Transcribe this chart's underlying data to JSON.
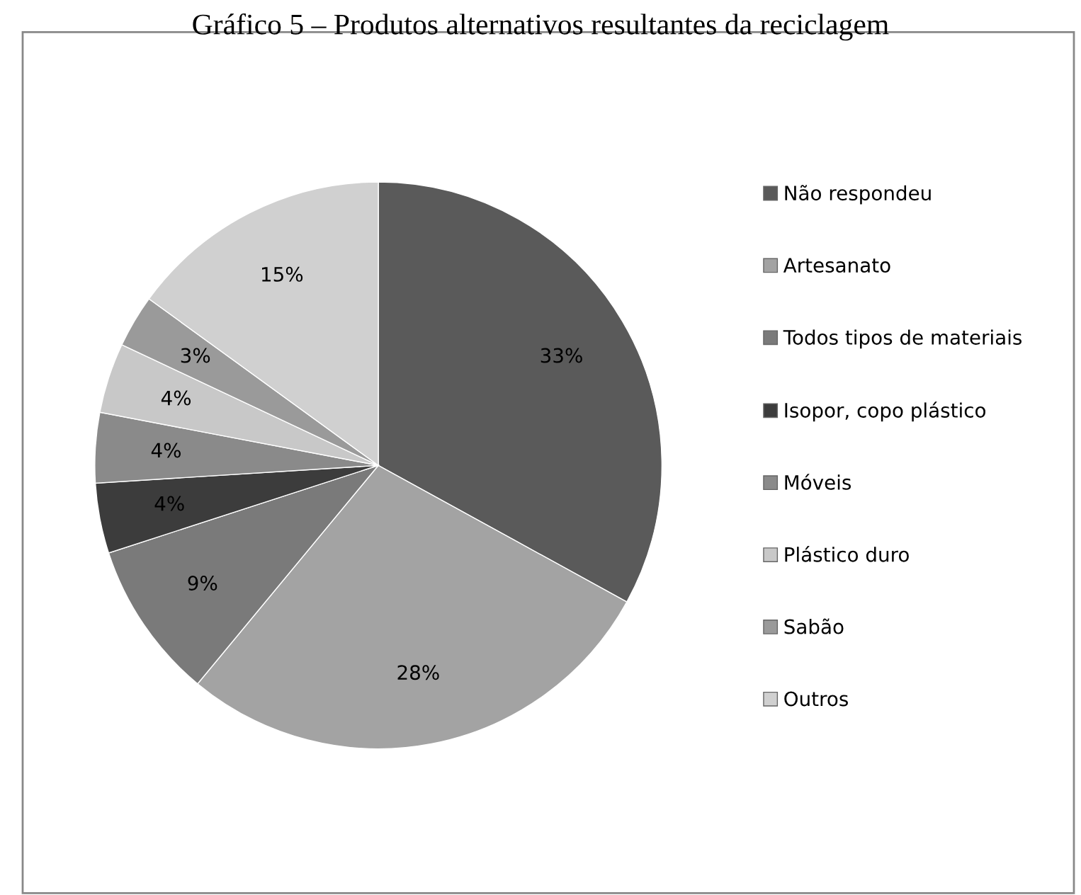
{
  "chart_data": {
    "type": "pie",
    "title": "Gráfico 5 – Produtos alternativos resultantes da reciclagem",
    "categories": [
      "Não respondeu",
      "Artesanato",
      "Todos tipos de materiais",
      "Isopor, copo plástico",
      "Móveis",
      "Plástico duro",
      "Sabão",
      "Outros"
    ],
    "values": [
      33,
      28,
      9,
      4,
      4,
      4,
      3,
      15
    ],
    "colors": [
      "#5a5a5a",
      "#a3a3a3",
      "#7a7a7a",
      "#3c3c3c",
      "#8a8a8a",
      "#c8c8c8",
      "#9a9a9a",
      "#d0d0d0"
    ],
    "value_labels": [
      "33%",
      "28%",
      "9%",
      "4%",
      "4%",
      "4%",
      "3%",
      "15%"
    ],
    "legend": "right"
  }
}
